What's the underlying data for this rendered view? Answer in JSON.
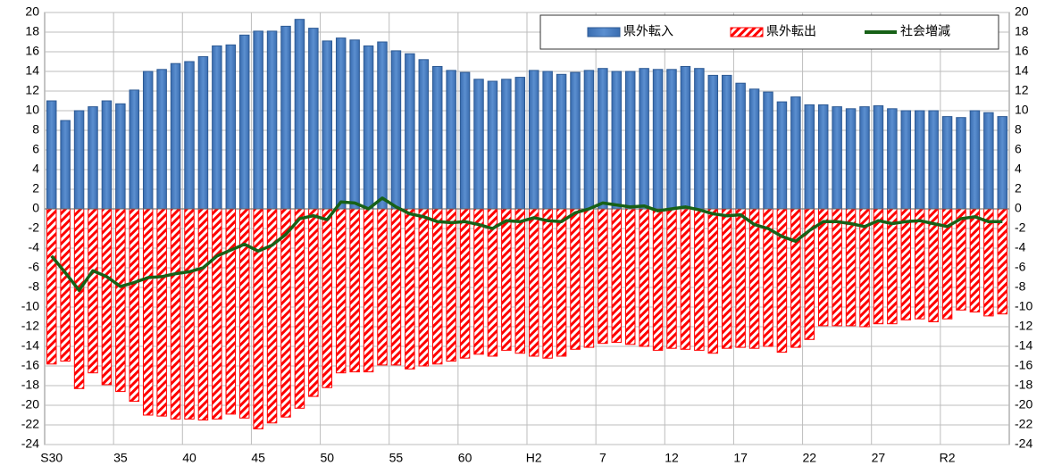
{
  "chart_data": {
    "type": "bar",
    "categories": [
      "S30",
      null,
      null,
      null,
      null,
      "35",
      null,
      null,
      null,
      null,
      "40",
      null,
      null,
      null,
      null,
      "45",
      null,
      null,
      null,
      null,
      "50",
      null,
      null,
      null,
      null,
      "55",
      null,
      null,
      null,
      null,
      "60",
      null,
      null,
      null,
      null,
      "H2",
      null,
      null,
      null,
      null,
      "7",
      null,
      null,
      null,
      null,
      "12",
      null,
      null,
      null,
      null,
      "17",
      null,
      null,
      null,
      null,
      "22",
      null,
      null,
      null,
      null,
      "27",
      null,
      null,
      null,
      null,
      "R2",
      null,
      null,
      null,
      null
    ],
    "series": [
      {
        "name": "県外転入",
        "type": "bar",
        "color": "#4f81bd",
        "values": [
          11.0,
          9.0,
          10.0,
          10.4,
          11.0,
          10.7,
          12.1,
          14.0,
          14.2,
          14.8,
          15.0,
          15.5,
          16.6,
          16.7,
          17.7,
          18.1,
          18.1,
          18.6,
          19.3,
          18.4,
          17.1,
          17.4,
          17.2,
          16.6,
          17.0,
          16.1,
          15.8,
          15.2,
          14.5,
          14.1,
          13.9,
          13.2,
          13.0,
          13.2,
          13.4,
          14.1,
          14.0,
          13.7,
          13.9,
          14.1,
          14.3,
          14.0,
          14.0,
          14.3,
          14.2,
          14.2,
          14.5,
          14.3,
          13.6,
          13.6,
          12.8,
          12.2,
          11.9,
          10.9,
          11.4,
          10.6,
          10.6,
          10.4,
          10.2,
          10.4,
          10.5,
          10.2,
          10.0,
          10.0,
          10.0,
          9.4,
          9.3,
          10.0,
          9.8,
          9.4
        ]
      },
      {
        "name": "県外転出",
        "type": "bar",
        "color": "#ff0000",
        "values": [
          -15.8,
          -15.5,
          -18.3,
          -16.7,
          -17.9,
          -18.6,
          -19.6,
          -21.0,
          -21.1,
          -21.4,
          -21.4,
          -21.5,
          -21.4,
          -20.9,
          -21.3,
          -22.4,
          -21.8,
          -21.2,
          -20.3,
          -19.1,
          -18.2,
          -16.7,
          -16.6,
          -16.6,
          -15.9,
          -15.9,
          -16.3,
          -16.0,
          -15.8,
          -15.5,
          -15.2,
          -14.8,
          -15.0,
          -14.4,
          -14.7,
          -15.0,
          -15.2,
          -15.0,
          -14.3,
          -14.1,
          -13.7,
          -13.6,
          -13.8,
          -14.0,
          -14.4,
          -14.2,
          -14.3,
          -14.4,
          -14.7,
          -14.2,
          -14.1,
          -14.2,
          -14.0,
          -14.6,
          -14.1,
          -13.3,
          -11.9,
          -11.9,
          -11.9,
          -12.0,
          -11.7,
          -11.7,
          -11.3,
          -11.2,
          -11.5,
          -11.2,
          -10.3,
          -10.5,
          -10.9,
          -10.7
        ]
      },
      {
        "name": "社会増減",
        "type": "line",
        "color": "#176117",
        "values": [
          -4.8,
          -6.5,
          -8.3,
          -6.3,
          -6.9,
          -7.9,
          -7.5,
          -7.0,
          -6.9,
          -6.6,
          -6.4,
          -6.0,
          -4.8,
          -4.2,
          -3.6,
          -4.3,
          -3.7,
          -2.6,
          -1.0,
          -0.7,
          -1.1,
          0.7,
          0.6,
          0.0,
          1.1,
          0.2,
          -0.5,
          -0.8,
          -1.3,
          -1.4,
          -1.3,
          -1.6,
          -2.0,
          -1.2,
          -1.3,
          -0.9,
          -1.2,
          -1.3,
          -0.4,
          0.0,
          0.6,
          0.4,
          0.2,
          0.3,
          -0.2,
          0.0,
          0.2,
          -0.1,
          -0.5,
          -0.7,
          -0.6,
          -1.6,
          -2.0,
          -2.8,
          -3.3,
          -2.2,
          -1.3,
          -1.3,
          -1.5,
          -1.8,
          -1.2,
          -1.5,
          -1.3,
          -1.2,
          -1.5,
          -1.8,
          -1.0,
          -0.8,
          -1.3,
          -1.3
        ]
      }
    ],
    "ylim": [
      -24,
      20
    ],
    "yticks": [
      -24,
      -22,
      -20,
      -18,
      -16,
      -14,
      -12,
      -10,
      -8,
      -6,
      -4,
      -2,
      0,
      2,
      4,
      6,
      8,
      10,
      12,
      14,
      16,
      18,
      20
    ],
    "grid": true,
    "legend": "top-right"
  }
}
